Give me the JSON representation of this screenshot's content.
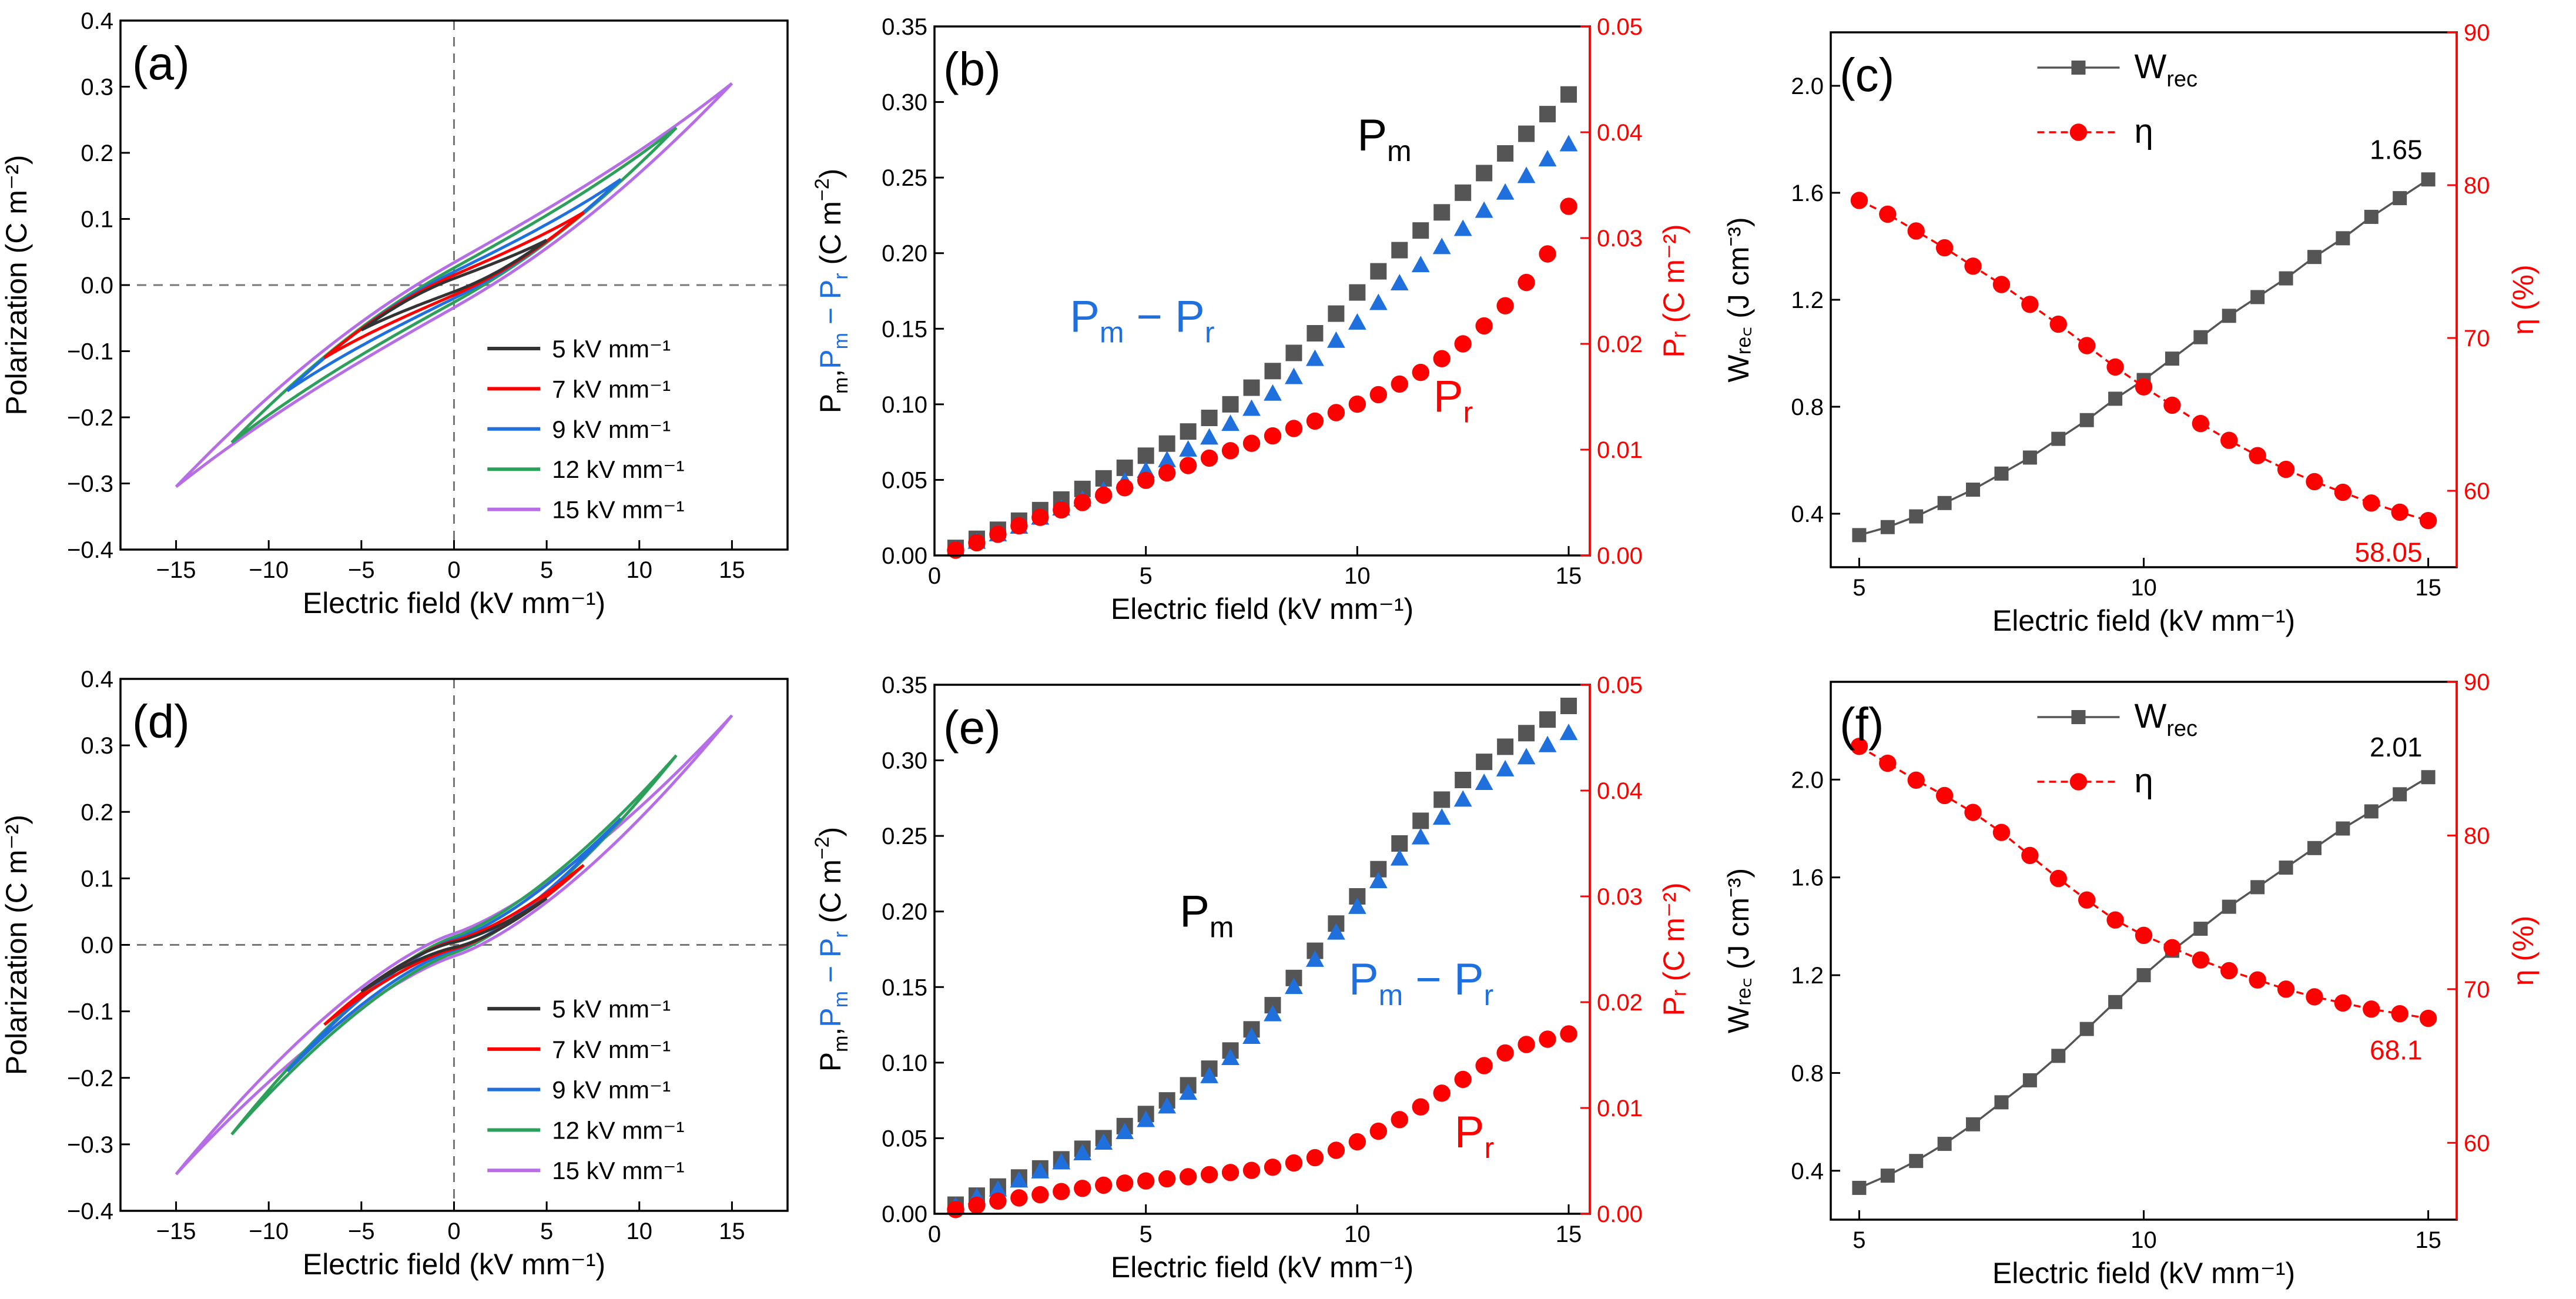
{
  "figure": {
    "colors": {
      "black": "#333333",
      "red": "#ff0000",
      "blue": "#1f6fdc",
      "green": "#2ca05a",
      "purple": "#b56ee6",
      "gray": "#555555"
    }
  },
  "chart_data": [
    {
      "id": "a",
      "type": "line",
      "panel_label": "(a)",
      "xlabel": "Electric field (kV mm⁻¹)",
      "ylabel": "Polarization (C m⁻²)",
      "xlim": [
        -18,
        18
      ],
      "ylim": [
        -0.4,
        0.4
      ],
      "xticks": [
        -15,
        -10,
        -5,
        0,
        5,
        10,
        15
      ],
      "xticklabels": [
        "−15",
        "−10",
        "−5",
        "0",
        "5",
        "10",
        "15"
      ],
      "yticks": [
        -0.4,
        -0.3,
        -0.2,
        -0.1,
        0.0,
        0.1,
        0.2,
        0.3,
        0.4
      ],
      "yticklabels": [
        "−0.4",
        "−0.3",
        "−0.2",
        "−0.1",
        "0.0",
        "0.1",
        "0.2",
        "0.3",
        "0.4"
      ],
      "legend_position": "lower-right",
      "loop_shape": "linear",
      "series": [
        {
          "name": "5 kV mm⁻¹",
          "emax": 5,
          "pmax": 0.068,
          "pr": 0.01,
          "color": "#333333"
        },
        {
          "name": "7 kV mm⁻¹",
          "emax": 7,
          "pmax": 0.11,
          "pr": 0.015,
          "color": "#ff0000"
        },
        {
          "name": "9 kV mm⁻¹",
          "emax": 9,
          "pmax": 0.16,
          "pr": 0.02,
          "color": "#1f6fdc"
        },
        {
          "name": "12 kV mm⁻¹",
          "emax": 12,
          "pmax": 0.238,
          "pr": 0.026,
          "color": "#2ca05a"
        },
        {
          "name": "15 kV mm⁻¹",
          "emax": 15,
          "pmax": 0.305,
          "pr": 0.034,
          "color": "#b56ee6"
        }
      ]
    },
    {
      "id": "b",
      "type": "scatter",
      "panel_label": "(b)",
      "xlabel": "Electric field (kV mm⁻¹)",
      "ylabel_parts": [
        {
          "text": "P",
          "color": "#000000"
        },
        {
          "text": "m",
          "sub": true,
          "color": "#000000"
        },
        {
          "text": ",",
          "color": "#000000"
        },
        {
          "text": "P",
          "color": "#1f6fdc"
        },
        {
          "text": "m",
          "sub": true,
          "color": "#1f6fdc"
        },
        {
          "text": " − P",
          "color": "#1f6fdc"
        },
        {
          "text": "r",
          "sub": true,
          "color": "#1f6fdc"
        },
        {
          "text": " (C m",
          "color": "#000000"
        },
        {
          "text": "−2",
          "sup": true,
          "color": "#000000"
        },
        {
          "text": ")",
          "color": "#000000"
        }
      ],
      "y2label": "Pᵣ (C m⁻²)",
      "xlim": [
        0,
        15.5
      ],
      "ylim": [
        0,
        0.35
      ],
      "y2lim": [
        0,
        0.05
      ],
      "xticks": [
        0,
        5,
        10,
        15
      ],
      "xticklabels": [
        "0",
        "5",
        "10",
        "15"
      ],
      "yticks": [
        0,
        0.05,
        0.1,
        0.15,
        0.2,
        0.25,
        0.3,
        0.35
      ],
      "yticklabels": [
        "0.00",
        "0.05",
        "0.10",
        "0.15",
        "0.20",
        "0.25",
        "0.30",
        "0.35"
      ],
      "y2ticks": [
        0,
        0.01,
        0.02,
        0.03,
        0.04,
        0.05
      ],
      "y2ticklabels": [
        "0.00",
        "0.01",
        "0.02",
        "0.03",
        "0.04",
        "0.05"
      ],
      "x": [
        0.5,
        1,
        1.5,
        2,
        2.5,
        3,
        3.5,
        4,
        4.5,
        5,
        5.5,
        6,
        6.5,
        7,
        7.5,
        8,
        8.5,
        9,
        9.5,
        10,
        10.5,
        11,
        11.5,
        12,
        12.5,
        13,
        13.5,
        14,
        14.5,
        15
      ],
      "series": [
        {
          "name": "Pm",
          "axis": "left",
          "marker": "square",
          "color": "#555555",
          "values": [
            0.005,
            0.011,
            0.017,
            0.023,
            0.03,
            0.037,
            0.044,
            0.051,
            0.058,
            0.066,
            0.074,
            0.082,
            0.091,
            0.1,
            0.111,
            0.122,
            0.134,
            0.147,
            0.16,
            0.174,
            0.188,
            0.202,
            0.215,
            0.227,
            0.24,
            0.253,
            0.266,
            0.279,
            0.292,
            0.305
          ]
        },
        {
          "name": "Pm − Pr",
          "axis": "left",
          "marker": "triangle",
          "color": "#1f6fdc",
          "values": [
            0.004,
            0.009,
            0.014,
            0.019,
            0.025,
            0.031,
            0.037,
            0.043,
            0.049,
            0.056,
            0.063,
            0.07,
            0.078,
            0.087,
            0.097,
            0.107,
            0.118,
            0.13,
            0.142,
            0.154,
            0.167,
            0.18,
            0.192,
            0.204,
            0.216,
            0.228,
            0.24,
            0.251,
            0.262,
            0.272
          ]
        },
        {
          "name": "Pr",
          "axis": "right",
          "marker": "circle",
          "color": "#ff0000",
          "values": [
            0.0005,
            0.0012,
            0.002,
            0.0028,
            0.0036,
            0.0043,
            0.005,
            0.0057,
            0.0064,
            0.0071,
            0.0078,
            0.0085,
            0.0092,
            0.0099,
            0.0106,
            0.0113,
            0.012,
            0.0127,
            0.0135,
            0.0143,
            0.0152,
            0.0162,
            0.0173,
            0.0186,
            0.02,
            0.0217,
            0.0236,
            0.0258,
            0.0285,
            0.033
          ]
        }
      ],
      "annotations": [
        {
          "series": "Pm",
          "main": "P",
          "sub": "m",
          "color": "#000000",
          "x": 10.0,
          "y": 0.268
        },
        {
          "series": "Pm − Pr",
          "main": "P",
          "sub": "m",
          "tail": " − P",
          "sub2": "r",
          "color": "#1f6fdc",
          "x": 3.2,
          "y": 0.148
        },
        {
          "series": "Pr",
          "main": "P",
          "sub": "r",
          "color": "#ff0000",
          "x": 11.8,
          "y": 0.095
        }
      ]
    },
    {
      "id": "c",
      "type": "line",
      "panel_label": "(c)",
      "xlabel": "Electric field (kV mm⁻¹)",
      "ylabel": "Wᵣₑ꜀ (J cm⁻³)",
      "y2label": "η (%)",
      "xlim": [
        4.5,
        15.5
      ],
      "ylim": [
        0.2,
        2.2
      ],
      "y2lim": [
        55,
        90
      ],
      "xticks": [
        5,
        10,
        15
      ],
      "xticklabels": [
        "5",
        "10",
        "15"
      ],
      "yticks": [
        0.4,
        0.8,
        1.2,
        1.6,
        2.0
      ],
      "yticklabels": [
        "0.4",
        "0.8",
        "1.2",
        "1.6",
        "2.0"
      ],
      "y2ticks": [
        60,
        70,
        80,
        90
      ],
      "y2ticklabels": [
        "60",
        "70",
        "80",
        "90"
      ],
      "legend": [
        {
          "name": "W",
          "sub": "rec",
          "color": "#555555",
          "marker": "square"
        },
        {
          "name": "η",
          "color": "#ff0000",
          "marker": "circle"
        }
      ],
      "x": [
        5,
        5.5,
        6,
        6.5,
        7,
        7.5,
        8,
        8.5,
        9,
        9.5,
        10,
        10.5,
        11,
        11.5,
        12,
        12.5,
        13,
        13.5,
        14,
        14.5,
        15
      ],
      "series": [
        {
          "name": "Wrec",
          "axis": "left",
          "marker": "square",
          "color": "#555555",
          "values": [
            0.32,
            0.35,
            0.39,
            0.44,
            0.49,
            0.55,
            0.61,
            0.68,
            0.75,
            0.83,
            0.9,
            0.98,
            1.06,
            1.14,
            1.21,
            1.28,
            1.36,
            1.43,
            1.51,
            1.58,
            1.65
          ]
        },
        {
          "name": "η",
          "axis": "right",
          "marker": "circle",
          "color": "#ff0000",
          "values": [
            79.0,
            78.1,
            77.0,
            75.9,
            74.7,
            73.5,
            72.2,
            70.9,
            69.5,
            68.1,
            66.8,
            65.6,
            64.4,
            63.3,
            62.3,
            61.4,
            60.6,
            59.9,
            59.2,
            58.6,
            58.05
          ]
        }
      ],
      "end_labels": [
        {
          "text": "1.65",
          "color": "#000000",
          "series": "Wrec"
        },
        {
          "text": "58.05",
          "color": "#ff0000",
          "series": "η"
        }
      ]
    },
    {
      "id": "d",
      "type": "line",
      "panel_label": "(d)",
      "xlabel": "Electric field (kV mm⁻¹)",
      "ylabel": "Polarization (C m⁻²)",
      "xlim": [
        -18,
        18
      ],
      "ylim": [
        -0.4,
        0.4
      ],
      "xticks": [
        -15,
        -10,
        -5,
        0,
        5,
        10,
        15
      ],
      "xticklabels": [
        "−15",
        "−10",
        "−5",
        "0",
        "5",
        "10",
        "15"
      ],
      "yticks": [
        -0.4,
        -0.3,
        -0.2,
        -0.1,
        0.0,
        0.1,
        0.2,
        0.3,
        0.4
      ],
      "yticklabels": [
        "−0.4",
        "−0.3",
        "−0.2",
        "−0.1",
        "0.0",
        "0.1",
        "0.2",
        "0.3",
        "0.4"
      ],
      "legend_position": "lower-right",
      "loop_shape": "sshape",
      "series": [
        {
          "name": "5 kV mm⁻¹",
          "emax": 5,
          "pmax": 0.07,
          "pr": 0.004,
          "color": "#333333"
        },
        {
          "name": "7 kV mm⁻¹",
          "emax": 7,
          "pmax": 0.12,
          "pr": 0.006,
          "color": "#ff0000"
        },
        {
          "name": "9 kV mm⁻¹",
          "emax": 9,
          "pmax": 0.19,
          "pr": 0.008,
          "color": "#1f6fdc"
        },
        {
          "name": "12 kV mm⁻¹",
          "emax": 12,
          "pmax": 0.285,
          "pr": 0.012,
          "color": "#2ca05a"
        },
        {
          "name": "15 kV mm⁻¹",
          "emax": 15,
          "pmax": 0.345,
          "pr": 0.017,
          "color": "#b56ee6"
        }
      ]
    },
    {
      "id": "e",
      "type": "scatter",
      "panel_label": "(e)",
      "xlabel": "Electric field (kV mm⁻¹)",
      "ylabel_parts": [
        {
          "text": "P",
          "color": "#000000"
        },
        {
          "text": "m",
          "sub": true,
          "color": "#000000"
        },
        {
          "text": ",",
          "color": "#000000"
        },
        {
          "text": "P",
          "color": "#1f6fdc"
        },
        {
          "text": "m",
          "sub": true,
          "color": "#1f6fdc"
        },
        {
          "text": " − P",
          "color": "#1f6fdc"
        },
        {
          "text": "r",
          "sub": true,
          "color": "#1f6fdc"
        },
        {
          "text": " (C m",
          "color": "#000000"
        },
        {
          "text": "−2",
          "sup": true,
          "color": "#000000"
        },
        {
          "text": ")",
          "color": "#000000"
        }
      ],
      "y2label": "Pᵣ (C m⁻²)",
      "xlim": [
        0,
        15.5
      ],
      "ylim": [
        0,
        0.35
      ],
      "y2lim": [
        0,
        0.05
      ],
      "xticks": [
        0,
        5,
        10,
        15
      ],
      "xticklabels": [
        "0",
        "5",
        "10",
        "15"
      ],
      "yticks": [
        0,
        0.05,
        0.1,
        0.15,
        0.2,
        0.25,
        0.3,
        0.35
      ],
      "yticklabels": [
        "0.00",
        "0.05",
        "0.10",
        "0.15",
        "0.20",
        "0.25",
        "0.30",
        "0.35"
      ],
      "y2ticks": [
        0,
        0.01,
        0.02,
        0.03,
        0.04,
        0.05
      ],
      "y2ticklabels": [
        "0.00",
        "0.01",
        "0.02",
        "0.03",
        "0.04",
        "0.05"
      ],
      "x": [
        0.5,
        1,
        1.5,
        2,
        2.5,
        3,
        3.5,
        4,
        4.5,
        5,
        5.5,
        6,
        6.5,
        7,
        7.5,
        8,
        8.5,
        9,
        9.5,
        10,
        10.5,
        11,
        11.5,
        12,
        12.5,
        13,
        13.5,
        14,
        14.5,
        15
      ],
      "series": [
        {
          "name": "Pm",
          "axis": "left",
          "marker": "square",
          "color": "#555555",
          "values": [
            0.006,
            0.012,
            0.018,
            0.024,
            0.03,
            0.036,
            0.043,
            0.05,
            0.058,
            0.066,
            0.075,
            0.085,
            0.096,
            0.108,
            0.122,
            0.138,
            0.156,
            0.174,
            0.192,
            0.21,
            0.228,
            0.245,
            0.26,
            0.274,
            0.287,
            0.299,
            0.309,
            0.318,
            0.327,
            0.336
          ]
        },
        {
          "name": "Pm − Pr",
          "axis": "left",
          "marker": "triangle",
          "color": "#1f6fdc",
          "values": [
            0.005,
            0.011,
            0.016,
            0.022,
            0.028,
            0.034,
            0.04,
            0.047,
            0.054,
            0.062,
            0.071,
            0.08,
            0.091,
            0.103,
            0.117,
            0.132,
            0.15,
            0.168,
            0.186,
            0.203,
            0.22,
            0.235,
            0.249,
            0.262,
            0.274,
            0.285,
            0.294,
            0.302,
            0.31,
            0.318
          ]
        },
        {
          "name": "Pr",
          "axis": "right",
          "marker": "circle",
          "color": "#ff0000",
          "values": [
            0.0004,
            0.0008,
            0.0012,
            0.0015,
            0.0018,
            0.0021,
            0.0024,
            0.0027,
            0.0029,
            0.0031,
            0.0033,
            0.0035,
            0.0037,
            0.0039,
            0.0041,
            0.0044,
            0.0048,
            0.0053,
            0.006,
            0.0068,
            0.0078,
            0.0089,
            0.0101,
            0.0114,
            0.0127,
            0.014,
            0.0152,
            0.016,
            0.0165,
            0.017
          ]
        }
      ],
      "annotations": [
        {
          "series": "Pm",
          "main": "P",
          "sub": "m",
          "color": "#000000",
          "x": 5.8,
          "y": 0.19
        },
        {
          "series": "Pm − Pr",
          "main": "P",
          "sub": "m",
          "tail": " − P",
          "sub2": "r",
          "color": "#1f6fdc",
          "x": 9.8,
          "y": 0.145
        },
        {
          "series": "Pr",
          "main": "P",
          "sub": "r",
          "color": "#ff0000",
          "x": 12.3,
          "y": 0.044
        }
      ]
    },
    {
      "id": "f",
      "type": "line",
      "panel_label": "(f)",
      "xlabel": "Electric field (kV mm⁻¹)",
      "ylabel": "Wᵣₑ꜀ (J cm⁻³)",
      "y2label": "η (%)",
      "xlim": [
        4.5,
        15.5
      ],
      "ylim": [
        0.2,
        2.4
      ],
      "y2lim": [
        55,
        90
      ],
      "xticks": [
        5,
        10,
        15
      ],
      "xticklabels": [
        "5",
        "10",
        "15"
      ],
      "yticks": [
        0.4,
        0.8,
        1.2,
        1.6,
        2.0
      ],
      "yticklabels": [
        "0.4",
        "0.8",
        "1.2",
        "1.6",
        "2.0"
      ],
      "y2ticks": [
        60,
        70,
        80,
        90
      ],
      "y2ticklabels": [
        "60",
        "70",
        "80",
        "90"
      ],
      "legend": [
        {
          "name": "W",
          "sub": "rec",
          "color": "#555555",
          "marker": "square"
        },
        {
          "name": "η",
          "color": "#ff0000",
          "marker": "circle"
        }
      ],
      "x": [
        5,
        5.5,
        6,
        6.5,
        7,
        7.5,
        8,
        8.5,
        9,
        9.5,
        10,
        10.5,
        11,
        11.5,
        12,
        12.5,
        13,
        13.5,
        14,
        14.5,
        15
      ],
      "series": [
        {
          "name": "Wrec",
          "axis": "left",
          "marker": "square",
          "color": "#555555",
          "values": [
            0.33,
            0.38,
            0.44,
            0.51,
            0.59,
            0.68,
            0.77,
            0.87,
            0.98,
            1.09,
            1.2,
            1.3,
            1.39,
            1.48,
            1.56,
            1.64,
            1.72,
            1.8,
            1.87,
            1.94,
            2.01
          ]
        },
        {
          "name": "η",
          "axis": "right",
          "marker": "circle",
          "color": "#ff0000",
          "values": [
            85.8,
            84.7,
            83.6,
            82.6,
            81.5,
            80.2,
            78.7,
            77.2,
            75.8,
            74.5,
            73.5,
            72.7,
            71.9,
            71.2,
            70.6,
            70.0,
            69.5,
            69.1,
            68.7,
            68.4,
            68.1
          ]
        }
      ],
      "end_labels": [
        {
          "text": "2.01",
          "color": "#000000",
          "series": "Wrec"
        },
        {
          "text": "68.1",
          "color": "#ff0000",
          "series": "η"
        }
      ]
    }
  ]
}
